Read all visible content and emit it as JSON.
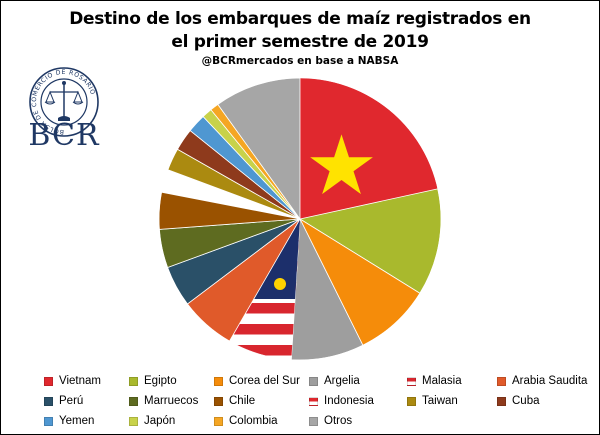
{
  "chart_data": {
    "type": "pie",
    "title": "Destino de los embarques de maíz registrados en el primer semestre de 2019",
    "subtitle": "@BCRmercados en base a NABSA",
    "slices": [
      {
        "label": "Vietnam",
        "value": 22.0,
        "color": "#e0282e",
        "flag": "vietnam"
      },
      {
        "label": "Egipto",
        "value": 12.5,
        "color": "#a9b92d"
      },
      {
        "label": "Corea del Sur",
        "value": 9.0,
        "color": "#f58c0a"
      },
      {
        "label": "Argelia",
        "value": 8.5,
        "color": "#9e9e9e"
      },
      {
        "label": "Malasia",
        "value": 7.5,
        "color": "#ffffff",
        "flag": "malaysia"
      },
      {
        "label": "Arabia Saudita",
        "value": 6.5,
        "color": "#e05a2a"
      },
      {
        "label": "Perú",
        "value": 4.8,
        "color": "#2a5068"
      },
      {
        "label": "Marruecos",
        "value": 4.5,
        "color": "#5e6b20"
      },
      {
        "label": "Chile",
        "value": 4.3,
        "color": "#9a5200"
      },
      {
        "label": "Indonesia",
        "value": 2.7,
        "color": "#ffffff",
        "flag": "indonesia"
      },
      {
        "label": "Taiwan",
        "value": 2.6,
        "color": "#ab8a10"
      },
      {
        "label": "Cuba",
        "value": 2.6,
        "color": "#8e3a1c"
      },
      {
        "label": "Yemen",
        "value": 2.2,
        "color": "#4f97d1"
      },
      {
        "label": "Japón",
        "value": 1.2,
        "color": "#c8d24a"
      },
      {
        "label": "Colombia",
        "value": 1.0,
        "color": "#f5a623"
      },
      {
        "label": "Otros",
        "value": 10.1,
        "color": "#a6a6a6"
      }
    ],
    "legend_order": [
      "Vietnam",
      "Egipto",
      "Corea del Sur",
      "Argelia",
      "Malasia",
      "Arabia Saudita",
      "Perú",
      "Marruecos",
      "Chile",
      "Indonesia",
      "Taiwan",
      "Cuba",
      "Yemen",
      "Japón",
      "Colombia",
      "Otros"
    ],
    "legend_position": "bottom"
  },
  "logo": {
    "ring_text": "BOLSA DE COMERCIO DE ROSARIO",
    "name": "BCR",
    "color": "#1f3864"
  }
}
